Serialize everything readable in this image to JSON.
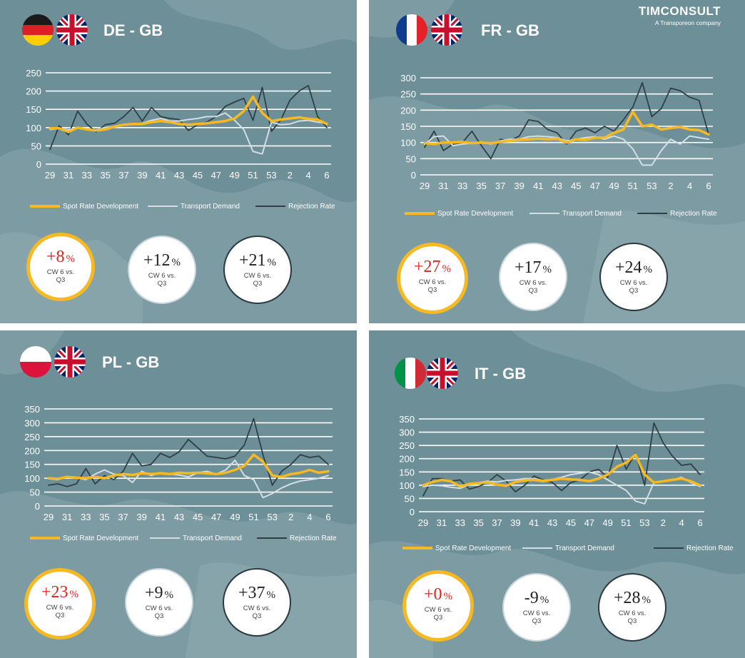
{
  "colors": {
    "spot": "#f6b823",
    "demand": "#d3dee4",
    "rejection": "#2e4046",
    "grid": "#ffffff",
    "panel_bg": "#6d8f98",
    "highlight_red": "#e3221b"
  },
  "logo": {
    "name": "TIMCONSULT",
    "tagline": "A Transporeon company"
  },
  "panels": [
    {
      "route": "DE - GB",
      "flags": [
        "germany-flag",
        "uk-flag"
      ],
      "legend": {
        "spot": "Spot Rate Development",
        "demand": "Transport Demand",
        "rejection": "Rejection Rate"
      },
      "badges": [
        {
          "value": "+8",
          "unit": "%",
          "line1": "CW 6 vs.",
          "line2": "Q3"
        },
        {
          "value": "+12",
          "unit": "%",
          "line1": "CW 6 vs.",
          "line2": "Q3"
        },
        {
          "value": "+21",
          "unit": "%",
          "line1": "CW 6 vs.",
          "line2": "Q3"
        }
      ]
    },
    {
      "route": "FR - GB",
      "flags": [
        "france-flag",
        "uk-flag"
      ],
      "legend": {
        "spot": "Spot Rate Development",
        "demand": "Transport Demand",
        "rejection": "Rejection Rate"
      },
      "badges": [
        {
          "value": "+27",
          "unit": "%",
          "line1": "CW 6 vs.",
          "line2": "Q3"
        },
        {
          "value": "+17",
          "unit": "%",
          "line1": "CW 6 vs.",
          "line2": "Q3"
        },
        {
          "value": "+24",
          "unit": "%",
          "line1": "CW 6 vs.",
          "line2": "Q3"
        }
      ]
    },
    {
      "route": "PL - GB",
      "flags": [
        "poland-flag",
        "uk-flag"
      ],
      "legend": {
        "spot": "Spot Rate Development",
        "demand": "Transport Demand",
        "rejection": "Rejection Rate"
      },
      "badges": [
        {
          "value": "+23",
          "unit": "%",
          "line1": "CW 6 vs.",
          "line2": "Q3"
        },
        {
          "value": "+9",
          "unit": "%",
          "line1": "CW 6 vs.",
          "line2": "Q3"
        },
        {
          "value": "+37",
          "unit": "%",
          "line1": "CW 6 vs.",
          "line2": "Q3"
        }
      ]
    },
    {
      "route": "IT - GB",
      "flags": [
        "italy-flag",
        "uk-flag"
      ],
      "legend": {
        "spot": "Spot Rate Development",
        "demand": "Transport Demand",
        "rejection": "Rejection Rate"
      },
      "badges": [
        {
          "value": "+0",
          "unit": "%",
          "line1": "CW 6 vs.",
          "line2": "Q3"
        },
        {
          "value": "-9",
          "unit": "%",
          "line1": "CW 6 vs.",
          "line2": "Q3"
        },
        {
          "value": "+28",
          "unit": "%",
          "line1": "CW 6 vs.",
          "line2": "Q3"
        }
      ]
    }
  ],
  "chart_data": [
    {
      "type": "line",
      "title": "DE - GB",
      "x_weeks": [
        29,
        30,
        31,
        32,
        33,
        34,
        35,
        36,
        37,
        38,
        39,
        40,
        41,
        42,
        43,
        44,
        45,
        46,
        47,
        48,
        49,
        50,
        51,
        52,
        53,
        1,
        2,
        3,
        4,
        5,
        6
      ],
      "xtick_labels": [
        "29",
        "31",
        "33",
        "35",
        "37",
        "39",
        "41",
        "43",
        "45",
        "47",
        "49",
        "51",
        "53",
        "2",
        "4",
        "6"
      ],
      "ylim": [
        0,
        250
      ],
      "yticks": [
        0,
        50,
        100,
        150,
        200,
        250
      ],
      "series": [
        {
          "name": "Spot Rate Development",
          "values": [
            98,
            98,
            88,
            100,
            95,
            92,
            95,
            103,
            108,
            110,
            110,
            115,
            118,
            115,
            110,
            108,
            110,
            112,
            115,
            118,
            125,
            145,
            185,
            140,
            118,
            122,
            125,
            128,
            124,
            122,
            110
          ]
        },
        {
          "name": "Transport Demand",
          "values": [
            95,
            97,
            94,
            99,
            97,
            93,
            100,
            103,
            107,
            110,
            112,
            120,
            125,
            118,
            118,
            122,
            125,
            130,
            130,
            140,
            120,
            95,
            35,
            28,
            115,
            108,
            110,
            118,
            120,
            115,
            112
          ]
        },
        {
          "name": "Rejection Rate",
          "values": [
            40,
            105,
            80,
            145,
            110,
            88,
            108,
            112,
            130,
            155,
            118,
            155,
            130,
            125,
            122,
            92,
            108,
            115,
            130,
            158,
            170,
            180,
            120,
            210,
            90,
            120,
            175,
            200,
            215,
            130,
            100
          ]
        }
      ]
    },
    {
      "type": "line",
      "title": "FR - GB",
      "x_weeks": [
        29,
        30,
        31,
        32,
        33,
        34,
        35,
        36,
        37,
        38,
        39,
        40,
        41,
        42,
        43,
        44,
        45,
        46,
        47,
        48,
        49,
        50,
        51,
        52,
        53,
        1,
        2,
        3,
        4,
        5,
        6
      ],
      "xtick_labels": [
        "29",
        "31",
        "33",
        "35",
        "37",
        "39",
        "41",
        "43",
        "45",
        "47",
        "49",
        "51",
        "53",
        "2",
        "4",
        "6"
      ],
      "ylim": [
        0,
        300
      ],
      "yticks": [
        0,
        50,
        100,
        150,
        200,
        250,
        300
      ],
      "series": [
        {
          "name": "Spot Rate Development",
          "values": [
            98,
            95,
            100,
            100,
            102,
            98,
            100,
            98,
            102,
            105,
            108,
            110,
            112,
            110,
            112,
            100,
            110,
            108,
            115,
            115,
            130,
            140,
            195,
            150,
            155,
            140,
            145,
            148,
            140,
            138,
            125
          ]
        },
        {
          "name": "Transport Demand",
          "values": [
            95,
            118,
            120,
            90,
            95,
            98,
            102,
            95,
            105,
            110,
            110,
            118,
            120,
            118,
            115,
            105,
            110,
            115,
            118,
            110,
            120,
            110,
            80,
            30,
            30,
            75,
            110,
            95,
            120,
            115,
            110
          ]
        },
        {
          "name": "Rejection Rate",
          "values": [
            85,
            135,
            75,
            95,
            100,
            135,
            90,
            50,
            110,
            105,
            120,
            170,
            165,
            140,
            130,
            95,
            135,
            145,
            130,
            150,
            135,
            170,
            210,
            285,
            180,
            205,
            268,
            260,
            240,
            230,
            125
          ]
        }
      ]
    },
    {
      "type": "line",
      "title": "PL - GB",
      "x_weeks": [
        29,
        30,
        31,
        32,
        33,
        34,
        35,
        36,
        37,
        38,
        39,
        40,
        41,
        42,
        43,
        44,
        45,
        46,
        47,
        48,
        49,
        50,
        51,
        52,
        53,
        1,
        2,
        3,
        4,
        5,
        6
      ],
      "xtick_labels": [
        "29",
        "31",
        "33",
        "35",
        "37",
        "39",
        "41",
        "43",
        "45",
        "47",
        "49",
        "51",
        "53",
        "2",
        "4",
        "6"
      ],
      "ylim": [
        0,
        350
      ],
      "yticks": [
        0,
        50,
        100,
        150,
        200,
        250,
        300,
        350
      ],
      "series": [
        {
          "name": "Spot Rate Development",
          "values": [
            100,
            98,
            105,
            102,
            100,
            105,
            100,
            110,
            115,
            112,
            118,
            115,
            118,
            115,
            120,
            118,
            120,
            118,
            115,
            120,
            130,
            145,
            185,
            160,
            110,
            105,
            115,
            120,
            130,
            120,
            125
          ]
        },
        {
          "name": "Transport Demand",
          "values": [
            98,
            95,
            105,
            102,
            95,
            115,
            130,
            115,
            110,
            85,
            125,
            110,
            120,
            115,
            112,
            105,
            120,
            125,
            115,
            130,
            165,
            110,
            95,
            30,
            45,
            65,
            80,
            90,
            95,
            100,
            110
          ]
        },
        {
          "name": "Rejection Rate",
          "values": [
            75,
            80,
            70,
            80,
            135,
            80,
            110,
            95,
            125,
            190,
            145,
            150,
            190,
            175,
            195,
            240,
            210,
            180,
            175,
            170,
            180,
            220,
            315,
            185,
            75,
            125,
            150,
            185,
            175,
            180,
            150
          ]
        }
      ]
    },
    {
      "type": "line",
      "title": "IT - GB",
      "x_weeks": [
        29,
        30,
        31,
        32,
        33,
        34,
        35,
        36,
        37,
        38,
        39,
        40,
        41,
        42,
        43,
        44,
        45,
        46,
        47,
        48,
        49,
        50,
        51,
        52,
        53,
        1,
        2,
        3,
        4,
        5,
        6
      ],
      "xtick_labels": [
        "29",
        "31",
        "33",
        "35",
        "37",
        "39",
        "41",
        "43",
        "45",
        "47",
        "49",
        "51",
        "53",
        "2",
        "4",
        "6"
      ],
      "ylim": [
        0,
        350
      ],
      "yticks": [
        0,
        50,
        100,
        150,
        200,
        250,
        300,
        350
      ],
      "series": [
        {
          "name": "Spot Rate Development",
          "values": [
            100,
            112,
            120,
            115,
            95,
            105,
            108,
            110,
            102,
            98,
            112,
            118,
            120,
            115,
            120,
            125,
            122,
            120,
            115,
            125,
            140,
            170,
            185,
            215,
            140,
            110,
            115,
            120,
            125,
            115,
            100
          ]
        },
        {
          "name": "Transport Demand",
          "values": [
            95,
            100,
            98,
            92,
            88,
            102,
            110,
            115,
            112,
            118,
            120,
            125,
            125,
            118,
            122,
            130,
            140,
            145,
            150,
            140,
            120,
            100,
            80,
            40,
            30,
            110,
            115,
            120,
            130,
            110,
            95
          ]
        },
        {
          "name": "Rejection Rate",
          "values": [
            60,
            125,
            125,
            115,
            120,
            85,
            95,
            110,
            140,
            115,
            75,
            100,
            135,
            120,
            110,
            80,
            110,
            120,
            150,
            160,
            130,
            250,
            160,
            220,
            100,
            335,
            260,
            210,
            175,
            180,
            140
          ]
        }
      ]
    }
  ]
}
